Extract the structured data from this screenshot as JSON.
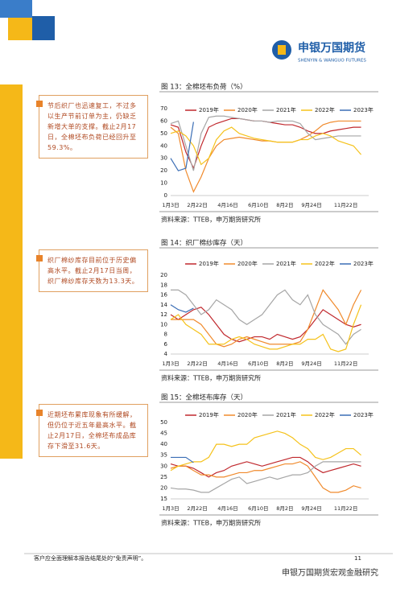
{
  "header": {
    "logo_cn": "申银万国期货",
    "logo_en": "SHENYIN & WANGUO FUTURES"
  },
  "notes": [
    "节后织厂也迅速复工，不过多以生产节前订单为主，仍缺乏新增大单的支撑。截止2月17日，全棉坯布负荷已经回升至59.3%。",
    "织厂棉纱库存目前位于历史偏高水平。截止2月17日当周，织厂棉纱库存天数为13.3天。",
    "近期坯布累库现象有所缓解，但仍位于近五年最高水平。截止2月17日，全棉坯布成品库存下滑至31.6天。"
  ],
  "chart_data": [
    {
      "type": "line",
      "title": "图 13：全棉坯布负荷（%）",
      "source": "资料来源：TTEB，申万期货研究所",
      "x": [
        0,
        2,
        4,
        6,
        8,
        10,
        12,
        14,
        16,
        18,
        20,
        22,
        24,
        26,
        28,
        30,
        32,
        34,
        36,
        38,
        40,
        42,
        44,
        46,
        48,
        50
      ],
      "xlim": [
        0,
        52
      ],
      "xticks": [
        {
          "value": 0,
          "label": "1月3日"
        },
        {
          "value": 7,
          "label": "2月22日"
        },
        {
          "value": 15,
          "label": "4月16日"
        },
        {
          "value": 23,
          "label": "6月10日"
        },
        {
          "value": 30,
          "label": "8月2日"
        },
        {
          "value": 37,
          "label": "9月24日"
        },
        {
          "value": 46,
          "label": "11月22日"
        }
      ],
      "ylim": [
        0,
        70
      ],
      "yticks": [
        0,
        10,
        20,
        30,
        40,
        50,
        60,
        70
      ],
      "series": [
        {
          "name": "2019年",
          "color": "#c0282d",
          "values": [
            57,
            55,
            35,
            22,
            40,
            55,
            58,
            60,
            62,
            62,
            61,
            60,
            60,
            59,
            58,
            57,
            57,
            55,
            52,
            50,
            50,
            52,
            53,
            54,
            55,
            55
          ]
        },
        {
          "name": "2020年",
          "color": "#f08a2c",
          "values": [
            55,
            50,
            20,
            3,
            15,
            30,
            40,
            45,
            46,
            47,
            46,
            45,
            44,
            44,
            43,
            43,
            43,
            45,
            48,
            52,
            57,
            59,
            60,
            60,
            60,
            60
          ]
        },
        {
          "name": "2021年",
          "color": "#a6a6a6",
          "values": [
            58,
            60,
            40,
            20,
            50,
            63,
            64,
            64,
            63,
            62,
            61,
            60,
            60,
            59,
            60,
            60,
            60,
            58,
            50,
            45,
            46,
            47,
            48,
            48,
            48,
            48
          ]
        },
        {
          "name": "2022年",
          "color": "#f5c21b",
          "values": [
            50,
            52,
            48,
            40,
            25,
            30,
            45,
            52,
            55,
            50,
            48,
            46,
            45,
            44,
            43,
            43,
            43,
            45,
            45,
            48,
            50,
            48,
            44,
            42,
            40,
            33
          ]
        },
        {
          "name": "2023年",
          "color": "#3b6eb5",
          "values": [
            30,
            20,
            22,
            59.3,
            null,
            null,
            null,
            null,
            null,
            null,
            null,
            null,
            null,
            null,
            null,
            null,
            null,
            null,
            null,
            null,
            null,
            null,
            null,
            null,
            null,
            null
          ]
        }
      ]
    },
    {
      "type": "line",
      "title": "图 14：织厂棉纱库存（天）",
      "source": "资料来源：TTEB，申万期货研究所",
      "x": [
        0,
        2,
        4,
        6,
        8,
        10,
        12,
        14,
        16,
        18,
        20,
        22,
        24,
        26,
        28,
        30,
        32,
        34,
        36,
        38,
        40,
        42,
        44,
        46,
        48,
        50
      ],
      "xlim": [
        0,
        52
      ],
      "xticks": [
        {
          "value": 0,
          "label": "1月3日"
        },
        {
          "value": 7,
          "label": "2月22日"
        },
        {
          "value": 15,
          "label": "4月16日"
        },
        {
          "value": 23,
          "label": "6月10日"
        },
        {
          "value": 30,
          "label": "8月2日"
        },
        {
          "value": 37,
          "label": "9月24日"
        },
        {
          "value": 46,
          "label": "11月22日"
        }
      ],
      "ylim": [
        4,
        20
      ],
      "yticks": [
        4,
        6,
        8,
        10,
        12,
        14,
        16,
        18,
        20
      ],
      "series": [
        {
          "name": "2019年",
          "color": "#c0282d",
          "values": [
            12,
            11,
            12,
            13,
            13.5,
            12,
            10,
            8,
            7,
            6.5,
            7,
            7.5,
            7.5,
            7,
            8,
            7.5,
            7,
            7.5,
            9,
            11,
            13,
            12,
            11,
            10,
            9.5,
            10
          ]
        },
        {
          "name": "2020年",
          "color": "#f08a2c",
          "values": [
            11,
            11,
            11,
            11,
            10,
            8,
            6,
            5.5,
            6,
            7,
            7.5,
            7,
            6.5,
            6,
            6,
            6,
            6,
            6.5,
            9,
            13,
            17,
            15,
            13,
            10,
            14,
            17
          ]
        },
        {
          "name": "2021年",
          "color": "#a6a6a6",
          "values": [
            17,
            17,
            16,
            14,
            12,
            13,
            15,
            14,
            13,
            11,
            10,
            11,
            12,
            14,
            16,
            17,
            15,
            14,
            16,
            12,
            10,
            9,
            8,
            6,
            8,
            9
          ]
        },
        {
          "name": "2022年",
          "color": "#f5c21b",
          "values": [
            11,
            12,
            10,
            9,
            8,
            6,
            6,
            6,
            7,
            7.5,
            7,
            6,
            5.5,
            5,
            5,
            5.5,
            6,
            6,
            7,
            7,
            8,
            5,
            4.5,
            5,
            10,
            14
          ]
        },
        {
          "name": "2023年",
          "color": "#3b6eb5",
          "values": [
            14,
            13,
            12.5,
            13.3,
            null,
            null,
            null,
            null,
            null,
            null,
            null,
            null,
            null,
            null,
            null,
            null,
            null,
            null,
            null,
            null,
            null,
            null,
            null,
            null,
            null,
            null
          ]
        }
      ]
    },
    {
      "type": "line",
      "title": "图 15：全棉坯布库存（天）",
      "source": "资料来源：TTEB，申万期货研究所",
      "x": [
        0,
        2,
        4,
        6,
        8,
        10,
        12,
        14,
        16,
        18,
        20,
        22,
        24,
        26,
        28,
        30,
        32,
        34,
        36,
        38,
        40,
        42,
        44,
        46,
        48,
        50
      ],
      "xlim": [
        0,
        52
      ],
      "xticks": [
        {
          "value": 0,
          "label": "1月3日"
        },
        {
          "value": 7,
          "label": "2月22日"
        },
        {
          "value": 15,
          "label": "4月16日"
        },
        {
          "value": 23,
          "label": "6月10日"
        },
        {
          "value": 30,
          "label": "8月2日"
        },
        {
          "value": 37,
          "label": "9月24日"
        },
        {
          "value": 46,
          "label": "11月22日"
        }
      ],
      "ylim": [
        15,
        50
      ],
      "yticks": [
        15,
        20,
        25,
        30,
        35,
        40,
        45,
        50
      ],
      "series": [
        {
          "name": "2019年",
          "color": "#c0282d",
          "values": [
            31,
            30,
            30,
            29,
            27,
            25,
            27,
            28,
            30,
            31,
            32,
            31,
            30,
            31,
            32,
            33,
            34,
            34,
            32,
            29,
            27,
            28,
            29,
            30,
            31,
            30
          ]
        },
        {
          "name": "2020年",
          "color": "#f08a2c",
          "values": [
            29,
            30,
            30,
            28,
            26,
            26,
            25,
            25,
            26,
            27,
            27,
            28,
            28,
            29,
            30,
            31,
            31,
            32,
            30,
            25,
            20,
            18,
            18,
            19,
            21,
            20
          ]
        },
        {
          "name": "2021年",
          "color": "#a6a6a6",
          "values": [
            20,
            19.5,
            19.5,
            19,
            18,
            18,
            20,
            22,
            24,
            25,
            22,
            23,
            24,
            25,
            24,
            25,
            26,
            26,
            27,
            30,
            32,
            32,
            32,
            32,
            32,
            32
          ]
        },
        {
          "name": "2022年",
          "color": "#f5c21b",
          "values": [
            28,
            30,
            31,
            32,
            32,
            34,
            40,
            40,
            39,
            40,
            40,
            43,
            44,
            45,
            46,
            45,
            43,
            40,
            38,
            34,
            33,
            34,
            36,
            38,
            38,
            35
          ]
        },
        {
          "name": "2023年",
          "color": "#3b6eb5",
          "values": [
            34,
            34,
            34,
            31.6,
            null,
            null,
            null,
            null,
            null,
            null,
            null,
            null,
            null,
            null,
            null,
            null,
            null,
            null,
            null,
            null,
            null,
            null,
            null,
            null,
            null,
            null
          ]
        }
      ]
    }
  ],
  "footer": {
    "disclaimer": "客户应全面理解本报告结尾处的“免责声明”。",
    "page": "11",
    "watermark": "申银万国期货宏观金融研究"
  }
}
